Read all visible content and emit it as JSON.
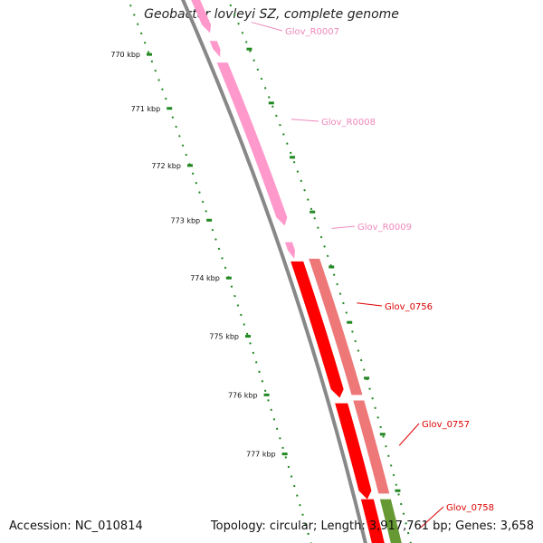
{
  "title": "Geobacter lovleyi SZ, complete genome",
  "accession": "Accession: NC_010814",
  "summary": "Topology: circular; Length: 3,917,761 bp; Genes: 3,658",
  "scale_labels": [
    "770 kbp",
    "771 kbp",
    "772 kbp",
    "773 kbp",
    "774 kbp",
    "775 kbp",
    "776 kbp",
    "777 kbp"
  ],
  "genes": [
    {
      "name": "Glov_R0007",
      "color": "#ee88bb"
    },
    {
      "name": "Glov_R0008",
      "color": "#ee88bb"
    },
    {
      "name": "Glov_R0009",
      "color": "#ee88bb"
    },
    {
      "name": "Glov_0756",
      "color": "#dd0000"
    },
    {
      "name": "Glov_0757",
      "color": "#dd0000"
    },
    {
      "name": "Glov_0758",
      "color": "#dd0000"
    }
  ],
  "colors": {
    "rna_feature": "#ff99cc",
    "cds_forward": "#ff0000",
    "cds_light": "#ee7777",
    "cds_green": "#669933",
    "backbone": "#888888",
    "tick": "#228822"
  }
}
